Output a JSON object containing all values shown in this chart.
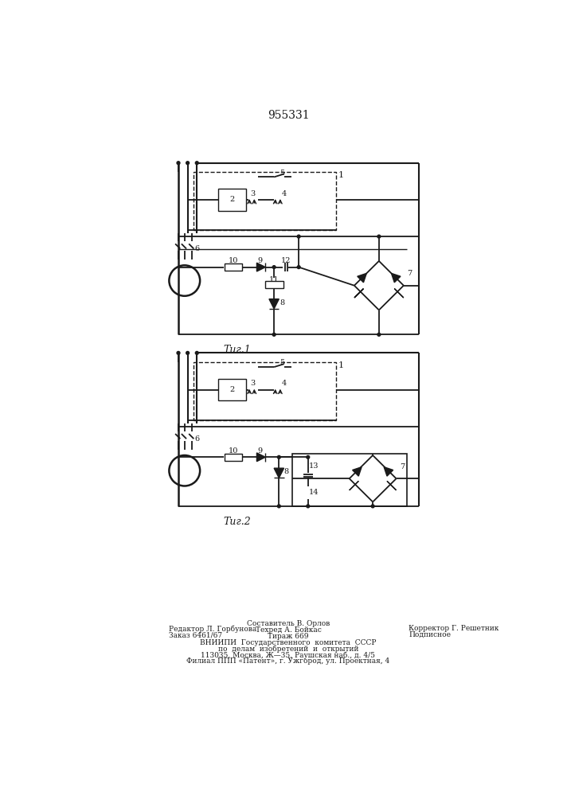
{
  "title": "955331",
  "background_color": "#ffffff",
  "line_color": "#1a1a1a",
  "fig1_label": "Τиг.1",
  "fig2_label": "Τиг.2",
  "footer": [
    [
      "Редактор Л. Горбунова",
      160,
      870,
      "left"
    ],
    [
      "Составитель В. Орлов",
      353,
      862,
      "center"
    ],
    [
      "Корректор Г. Решетник",
      548,
      870,
      "left"
    ],
    [
      "Заказ 6461/67",
      160,
      880,
      "left"
    ],
    [
      "Техред А. Бойкас",
      353,
      872,
      "center"
    ],
    [
      "Подписное",
      548,
      880,
      "left"
    ],
    [
      "Тираж 669",
      353,
      882,
      "center"
    ],
    [
      "ВНИИПИ  Государственного  комитета  СССР",
      353,
      893,
      "center"
    ],
    [
      "по  делам  изобретений  и  открытий",
      353,
      903,
      "center"
    ],
    [
      "113035, Москва, Ж—35, Раушская наб., д. 4/5",
      353,
      913,
      "center"
    ],
    [
      "Филиал ППП «Патент», г. Ужгород, ул. Проектная, 4",
      353,
      923,
      "center"
    ]
  ]
}
